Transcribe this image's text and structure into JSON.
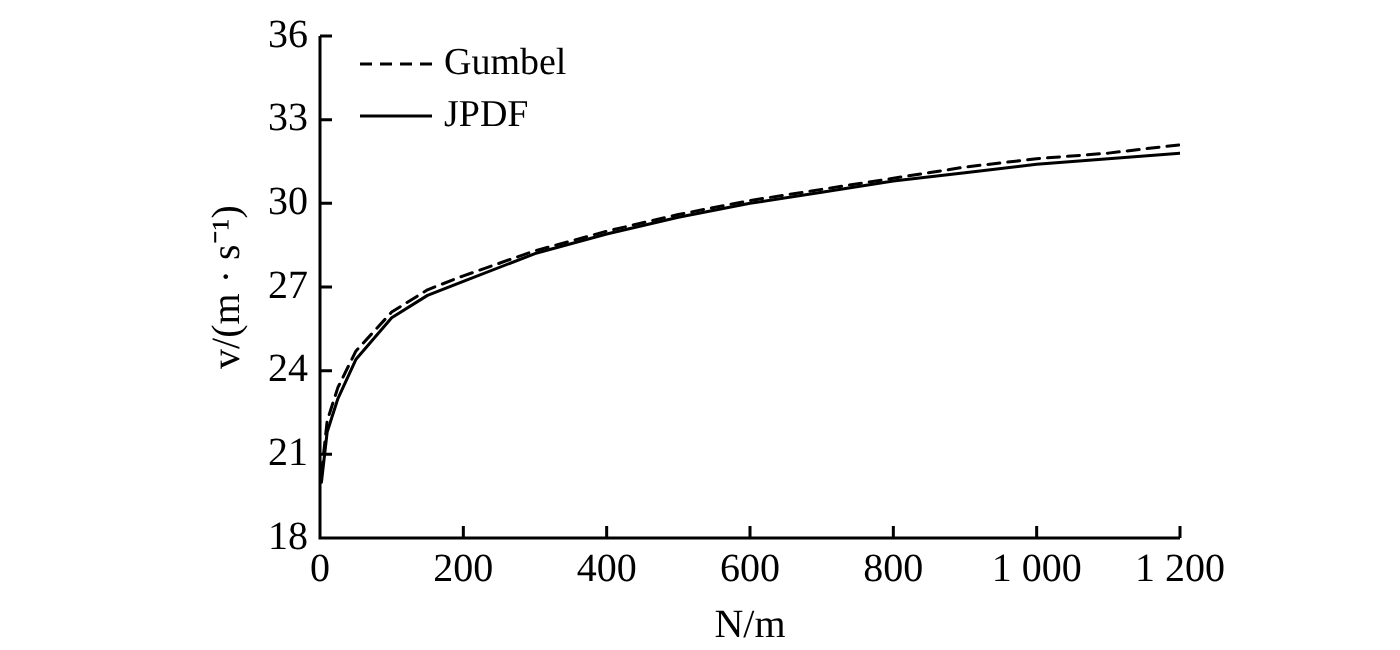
{
  "chart_data": {
    "type": "line",
    "xlabel": "N/m",
    "ylabel": "v/(m · s⁻¹)",
    "x": [
      2,
      10,
      25,
      50,
      100,
      150,
      200,
      300,
      400,
      500,
      600,
      700,
      800,
      900,
      1000,
      1100,
      1200
    ],
    "series": [
      {
        "name": "Gumbel",
        "color": "#000000",
        "line_style": "dashed",
        "values": [
          20.3,
          22.2,
          23.4,
          24.7,
          26.1,
          26.9,
          27.4,
          28.3,
          29.0,
          29.6,
          30.1,
          30.5,
          30.9,
          31.3,
          31.6,
          31.8,
          32.1
        ]
      },
      {
        "name": "JPDF",
        "color": "#000000",
        "line_style": "solid",
        "values": [
          20.0,
          21.8,
          23.0,
          24.4,
          25.9,
          26.7,
          27.2,
          28.2,
          28.9,
          29.5,
          30.0,
          30.4,
          30.8,
          31.1,
          31.4,
          31.6,
          31.8
        ]
      }
    ],
    "xlim": [
      0,
      1200
    ],
    "xticks": [
      0,
      200,
      400,
      600,
      800,
      {
        "value": 1000,
        "label": "1 000"
      },
      {
        "value": 1200,
        "label": "1 200"
      }
    ],
    "ylim": [
      18,
      36
    ],
    "yticks": [
      18,
      21,
      24,
      27,
      30,
      33,
      36
    ],
    "grid": false,
    "legend": "top left",
    "marker": "none"
  }
}
